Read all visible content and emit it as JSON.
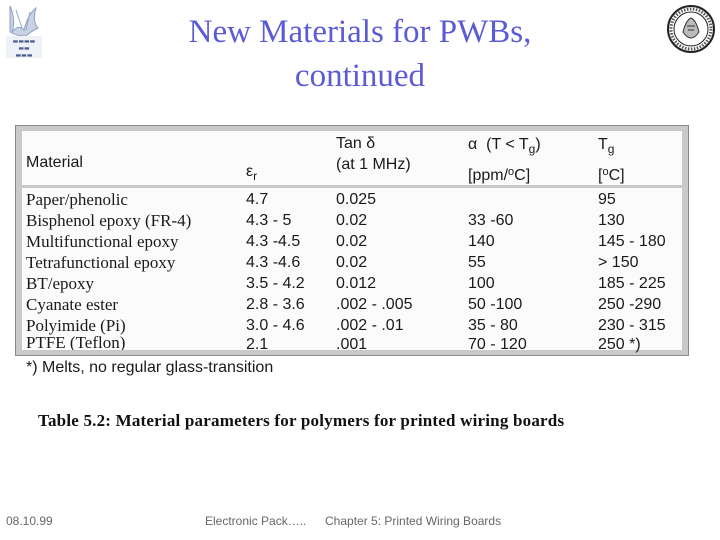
{
  "slide": {
    "title_line1": "New Materials for PWBs,",
    "title_line2": "continued"
  },
  "table": {
    "headers": {
      "material": "Material",
      "er_symbol": "ε",
      "er_sub": "r",
      "tan_line1": "Tan δ",
      "tan_line2": "(at 1 MHz)",
      "alpha_symbol": "α",
      "alpha_cond": "(T < T",
      "alpha_cond_sub": "g",
      "alpha_cond_close": ")",
      "alpha_unit_a": "[ppm/",
      "alpha_unit_sup": "o",
      "alpha_unit_b": "C]",
      "tg_symbol": "T",
      "tg_sub": "g",
      "tg_unit_a": "[",
      "tg_unit_sup": "o",
      "tg_unit_b": "C]"
    },
    "rows": [
      {
        "material": "Paper/phenolic",
        "er": "4.7",
        "tan": "0.025",
        "alpha": "",
        "tg": "95"
      },
      {
        "material": "Bisphenol epoxy (FR-4)",
        "er": "4.3 - 5",
        "tan": "0.02",
        "alpha": "33 -60",
        "tg": "130"
      },
      {
        "material": "Multifunctional epoxy",
        "er": "4.3 -4.5",
        "tan": "0.02",
        "alpha": "140",
        "tg": "145 - 180"
      },
      {
        "material": "Tetrafunctional epoxy",
        "er": "4.3 -4.6",
        "tan": "0.02",
        "alpha": "55",
        "tg": "> 150"
      },
      {
        "material": "BT/epoxy",
        "er": "3.5 - 4.2",
        "tan": "0.012",
        "alpha": "100",
        "tg": "185 - 225"
      },
      {
        "material": "Cyanate ester",
        "er": "2.8 - 3.6",
        "tan": ".002 - .005",
        "alpha": "50 -100",
        "tg": "250 -290"
      },
      {
        "material": "Polyimide (Pi)",
        "er": "3.0 - 4.6",
        "tan": ".002 - .01",
        "alpha": "35 - 80",
        "tg": "230 - 315"
      },
      {
        "material": "PTFE (Teflon)",
        "er": "2.1",
        "tan": ".001",
        "alpha": "70 - 120",
        "tg": "250 *)"
      }
    ],
    "footnote": "*) Melts, no regular glass-transition"
  },
  "caption": "Table 5.2: Material parameters for polymers for printed wiring boards",
  "footer": {
    "date": "08.10.99",
    "course": "Electronic Pack…..",
    "chapter": "Chapter 5: Printed Wiring Boards"
  }
}
